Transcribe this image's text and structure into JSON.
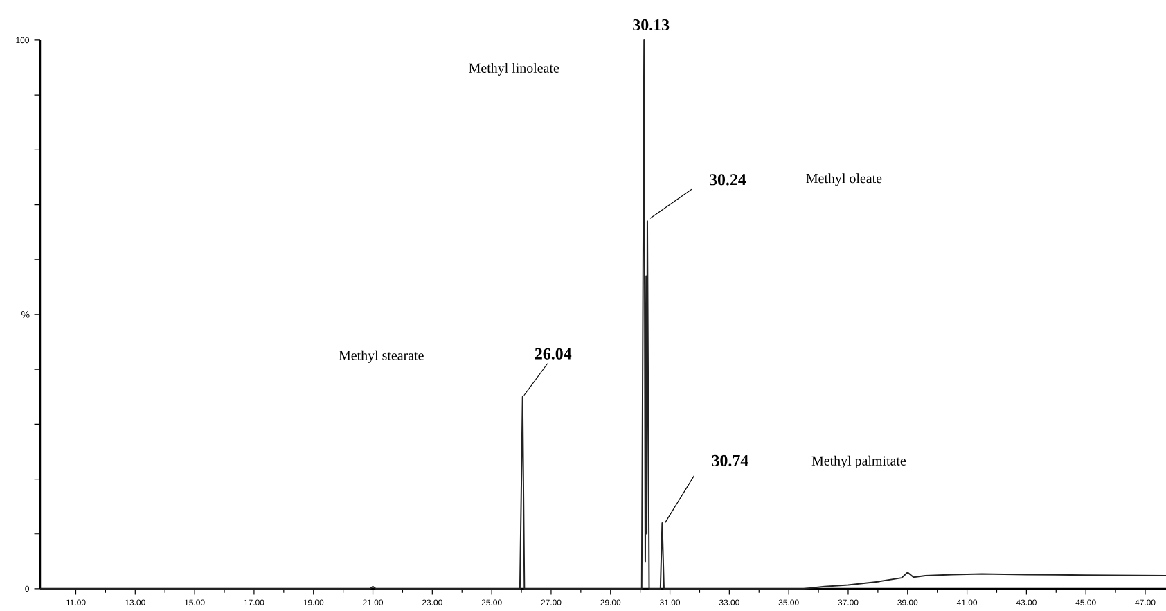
{
  "chart_data": {
    "type": "line",
    "ylabel": "%",
    "xlim": [
      9.8,
      47.7
    ],
    "ylim": [
      0,
      100
    ],
    "xticks": [
      {
        "value": 11,
        "label": "11.00"
      },
      {
        "value": 13,
        "label": "13.00"
      },
      {
        "value": 15,
        "label": "15.00"
      },
      {
        "value": 17,
        "label": "17.00"
      },
      {
        "value": 19,
        "label": "19.00"
      },
      {
        "value": 21,
        "label": "21.00"
      },
      {
        "value": 23,
        "label": "23.00"
      },
      {
        "value": 25,
        "label": "25.00"
      },
      {
        "value": 27,
        "label": "27.00"
      },
      {
        "value": 29,
        "label": "29.00"
      },
      {
        "value": 31,
        "label": "31.00"
      },
      {
        "value": 33,
        "label": "33.00"
      },
      {
        "value": 35,
        "label": "35.00"
      },
      {
        "value": 37,
        "label": "37.00"
      },
      {
        "value": 39,
        "label": "39.00"
      },
      {
        "value": 41,
        "label": "41.00"
      },
      {
        "value": 43,
        "label": "43.00"
      },
      {
        "value": 45,
        "label": "45.00"
      },
      {
        "value": 47,
        "label": "47.00"
      }
    ],
    "yticks": [
      0,
      {
        "value": 10,
        "label": null
      },
      {
        "value": 20,
        "label": null
      },
      {
        "value": 30,
        "label": null
      },
      {
        "value": 40,
        "label": null
      },
      {
        "value": 50,
        "label": null
      },
      {
        "value": 60,
        "label": null
      },
      {
        "value": 70,
        "label": null
      },
      {
        "value": 80,
        "label": null
      },
      {
        "value": 90,
        "label": null
      },
      100
    ],
    "series": [
      {
        "color": "#222222",
        "x": [
          9.8,
          20.9,
          21.0,
          21.1,
          25.95,
          26.04,
          26.1,
          30.05,
          30.13,
          30.17,
          30.2,
          30.22,
          30.24,
          30.3,
          30.68,
          30.74,
          30.8,
          35.5,
          36.2,
          37.0,
          38.0,
          38.8,
          39.0,
          39.2,
          39.6,
          40.5,
          41.5,
          43.0,
          45.0,
          47.7
        ],
        "values": [
          0,
          0,
          0.4,
          0,
          0,
          35,
          0,
          0,
          100,
          5,
          57,
          10,
          67,
          0,
          0,
          12,
          0,
          0,
          0.4,
          0.7,
          1.3,
          2.0,
          3.0,
          2.1,
          2.4,
          2.6,
          2.7,
          2.6,
          2.5,
          2.4
        ]
      }
    ],
    "annotations": [
      {
        "text": "30.13",
        "x": 30.13,
        "y": 100
      },
      "Methyl linoleate",
      {
        "text": "30.24",
        "x": 30.24,
        "y": 67
      },
      "Methyl oleate",
      {
        "text": "26.04",
        "x": 26.04,
        "y": 35
      },
      "Methyl stearate",
      {
        "text": "30.74",
        "x": 30.74,
        "y": 12
      },
      "Methyl palmitate"
    ]
  }
}
